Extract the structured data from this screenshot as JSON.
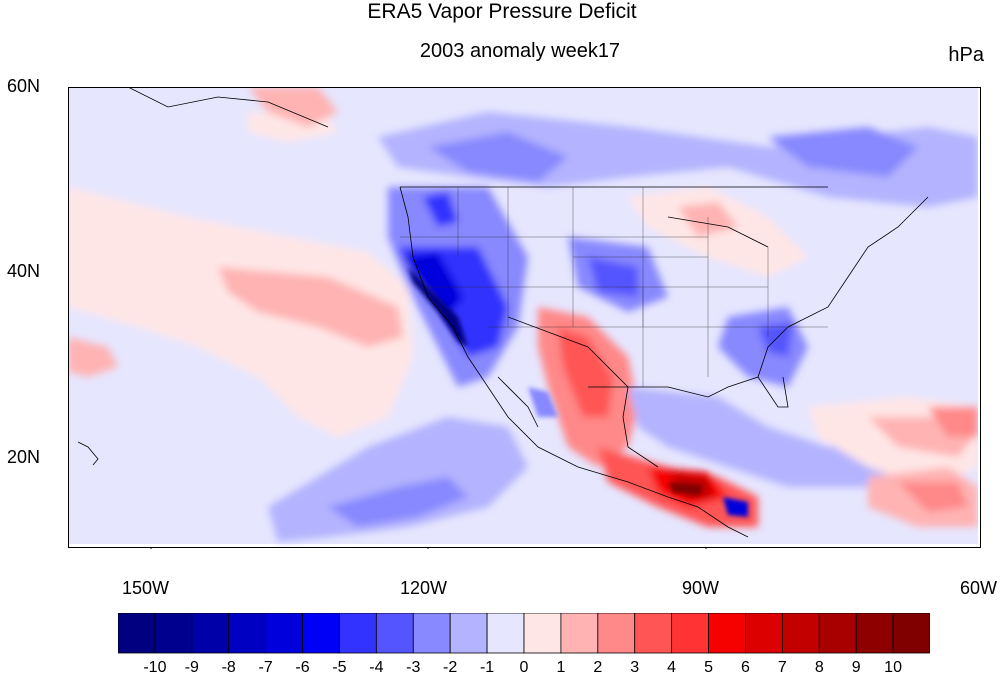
{
  "title": "ERA5 Vapor Pressure Deficit",
  "subtitle": "2003 anomaly week17",
  "units": "hPa",
  "lat_labels": [
    "60N",
    "40N",
    "20N"
  ],
  "lon_labels": [
    "150W",
    "120W",
    "90W",
    "60W"
  ],
  "colorbar": {
    "labels": [
      "-10",
      "-9",
      "-8",
      "-7",
      "-6",
      "-5",
      "-4",
      "-3",
      "-2",
      "-1",
      "0",
      "1",
      "2",
      "3",
      "4",
      "5",
      "6",
      "7",
      "8",
      "9",
      "10"
    ],
    "colors": [
      "#000080",
      "#00008e",
      "#0000a8",
      "#0000c3",
      "#0000dd",
      "#0000f7",
      "#3333ff",
      "#5555ff",
      "#8888ff",
      "#b3b3ff",
      "#e6e6ff",
      "#ffe6e6",
      "#ffb3b3",
      "#ff8888",
      "#ff5555",
      "#ff3333",
      "#f70000",
      "#dd0000",
      "#c30000",
      "#a80000",
      "#8e0000",
      "#800000"
    ]
  },
  "background_anomaly_color": "#e6e6ff",
  "map_extent": {
    "lon": [
      -160,
      -60
    ],
    "lat": [
      10,
      60
    ]
  }
}
